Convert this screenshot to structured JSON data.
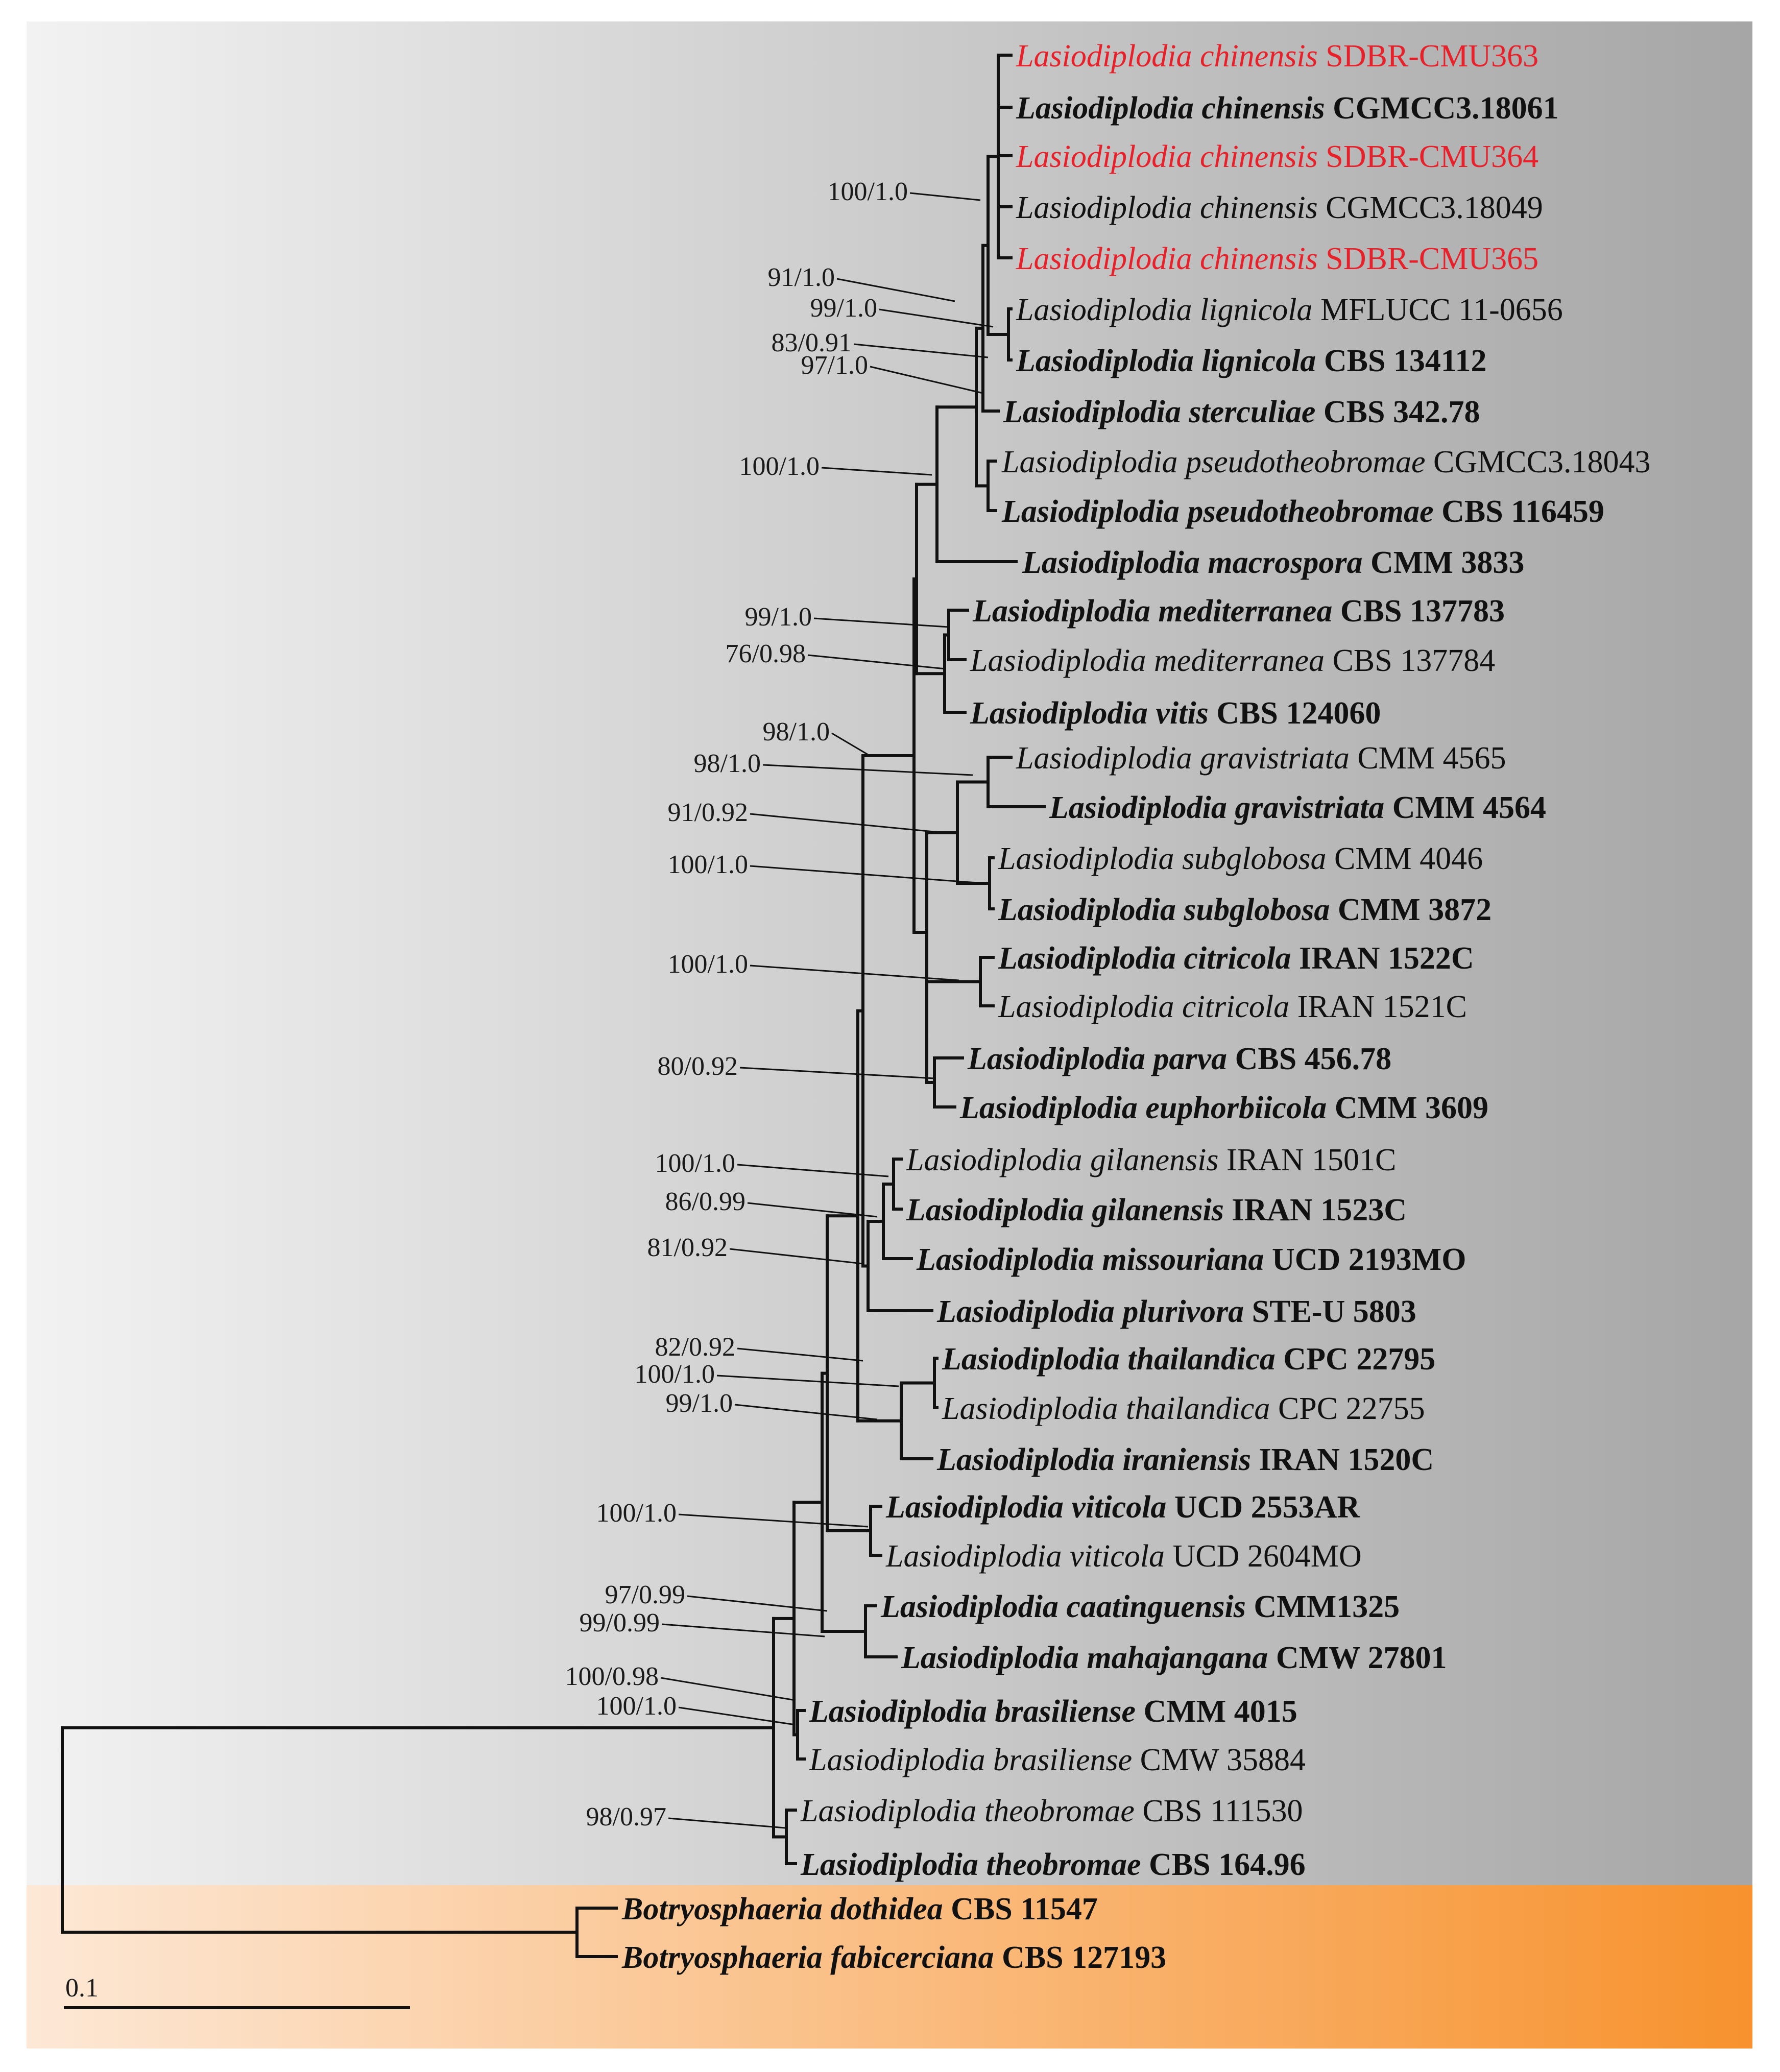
{
  "colors": {
    "ingroup_bg_start": "#f2f2f2",
    "ingroup_bg_end": "#a6a6a6",
    "outgroup_bg_start": "#fde8d6",
    "outgroup_bg_end": "#f7922e",
    "new_isolate_text": "#e8202a",
    "default_text": "#111111"
  },
  "taxa": [
    {
      "genus": "Lasiodiplodia",
      "epithet": "chinensis",
      "strain": "SDBR-CMU363",
      "type_strain": false,
      "new_isolate": true
    },
    {
      "genus": "Lasiodiplodia",
      "epithet": "chinensis",
      "strain": "CGMCC3.18061",
      "type_strain": true,
      "new_isolate": false
    },
    {
      "genus": "Lasiodiplodia",
      "epithet": "chinensis",
      "strain": "SDBR-CMU364",
      "type_strain": false,
      "new_isolate": true
    },
    {
      "genus": "Lasiodiplodia",
      "epithet": "chinensis",
      "strain": "CGMCC3.18049",
      "type_strain": false,
      "new_isolate": false
    },
    {
      "genus": "Lasiodiplodia",
      "epithet": "chinensis",
      "strain": "SDBR-CMU365",
      "type_strain": false,
      "new_isolate": true
    },
    {
      "genus": "Lasiodiplodia",
      "epithet": "lignicola",
      "strain": "MFLUCC 11-0656",
      "type_strain": false,
      "new_isolate": false
    },
    {
      "genus": "Lasiodiplodia",
      "epithet": "lignicola",
      "strain": "CBS 134112",
      "type_strain": true,
      "new_isolate": false
    },
    {
      "genus": "Lasiodiplodia",
      "epithet": "sterculiae",
      "strain": "CBS 342.78",
      "type_strain": true,
      "new_isolate": false
    },
    {
      "genus": "Lasiodiplodia",
      "epithet": "pseudotheobromae",
      "strain": "CGMCC3.18043",
      "type_strain": false,
      "new_isolate": false
    },
    {
      "genus": "Lasiodiplodia",
      "epithet": "pseudotheobromae",
      "strain": "CBS 116459",
      "type_strain": true,
      "new_isolate": false
    },
    {
      "genus": "Lasiodiplodia",
      "epithet": "macrospora",
      "strain": "CMM 3833",
      "type_strain": true,
      "new_isolate": false
    },
    {
      "genus": "Lasiodiplodia",
      "epithet": "mediterranea",
      "strain": "CBS 137783",
      "type_strain": true,
      "new_isolate": false
    },
    {
      "genus": "Lasiodiplodia",
      "epithet": "mediterranea",
      "strain": "CBS 137784",
      "type_strain": false,
      "new_isolate": false
    },
    {
      "genus": "Lasiodiplodia",
      "epithet": "vitis",
      "strain": "CBS 124060",
      "type_strain": true,
      "new_isolate": false
    },
    {
      "genus": "Lasiodiplodia",
      "epithet": "gravistriata",
      "strain": "CMM 4565",
      "type_strain": false,
      "new_isolate": false
    },
    {
      "genus": "Lasiodiplodia",
      "epithet": "gravistriata",
      "strain": "CMM 4564",
      "type_strain": true,
      "new_isolate": false
    },
    {
      "genus": "Lasiodiplodia",
      "epithet": "subglobosa",
      "strain": "CMM 4046",
      "type_strain": false,
      "new_isolate": false
    },
    {
      "genus": "Lasiodiplodia",
      "epithet": "subglobosa",
      "strain": "CMM 3872",
      "type_strain": true,
      "new_isolate": false
    },
    {
      "genus": "Lasiodiplodia",
      "epithet": "citricola",
      "strain": "IRAN 1522C",
      "type_strain": true,
      "new_isolate": false
    },
    {
      "genus": "Lasiodiplodia",
      "epithet": "citricola",
      "strain": "IRAN 1521C",
      "type_strain": false,
      "new_isolate": false
    },
    {
      "genus": "Lasiodiplodia",
      "epithet": "parva",
      "strain": "CBS 456.78",
      "type_strain": true,
      "new_isolate": false
    },
    {
      "genus": "Lasiodiplodia",
      "epithet": "euphorbiicola",
      "strain": "CMM 3609",
      "type_strain": true,
      "new_isolate": false
    },
    {
      "genus": "Lasiodiplodia",
      "epithet": "gilanensis",
      "strain": "IRAN 1501C",
      "type_strain": false,
      "new_isolate": false
    },
    {
      "genus": "Lasiodiplodia",
      "epithet": "gilanensis",
      "strain": "IRAN 1523C",
      "type_strain": true,
      "new_isolate": false
    },
    {
      "genus": "Lasiodiplodia",
      "epithet": "missouriana",
      "strain": "UCD 2193MO",
      "type_strain": true,
      "new_isolate": false
    },
    {
      "genus": "Lasiodiplodia",
      "epithet": "plurivora",
      "strain": "STE-U 5803",
      "type_strain": true,
      "new_isolate": false
    },
    {
      "genus": "Lasiodiplodia",
      "epithet": "thailandica",
      "strain": "CPC 22795",
      "type_strain": true,
      "new_isolate": false
    },
    {
      "genus": "Lasiodiplodia",
      "epithet": "thailandica",
      "strain": "CPC 22755",
      "type_strain": false,
      "new_isolate": false
    },
    {
      "genus": "Lasiodiplodia",
      "epithet": "iraniensis",
      "strain": "IRAN 1520C",
      "type_strain": true,
      "new_isolate": false
    },
    {
      "genus": "Lasiodiplodia",
      "epithet": "viticola",
      "strain": "UCD 2553AR",
      "type_strain": true,
      "new_isolate": false
    },
    {
      "genus": "Lasiodiplodia",
      "epithet": "viticola",
      "strain": "UCD 2604MO",
      "type_strain": false,
      "new_isolate": false
    },
    {
      "genus": "Lasiodiplodia",
      "epithet": "caatinguensis",
      "strain": "CMM1325",
      "type_strain": true,
      "new_isolate": false
    },
    {
      "genus": "Lasiodiplodia",
      "epithet": "mahajangana",
      "strain": "CMW 27801",
      "type_strain": true,
      "new_isolate": false
    },
    {
      "genus": "Lasiodiplodia",
      "epithet": "brasiliense",
      "strain": "CMM 4015",
      "type_strain": true,
      "new_isolate": false
    },
    {
      "genus": "Lasiodiplodia",
      "epithet": "brasiliense",
      "strain": "CMW 35884",
      "type_strain": false,
      "new_isolate": false
    },
    {
      "genus": "Lasiodiplodia",
      "epithet": "theobromae",
      "strain": "CBS 111530",
      "type_strain": false,
      "new_isolate": false
    },
    {
      "genus": "Lasiodiplodia",
      "epithet": "theobromae",
      "strain": "CBS 164.96",
      "type_strain": true,
      "new_isolate": false
    },
    {
      "genus": "Botryosphaeria",
      "epithet": "dothidea",
      "strain": "CBS 11547",
      "type_strain": true,
      "new_isolate": false
    },
    {
      "genus": "Botryosphaeria",
      "epithet": "fabicerciana",
      "strain": "CBS 127193",
      "type_strain": true,
      "new_isolate": false
    }
  ],
  "support_values": [
    {
      "label": "100/1.0",
      "clade": "L. chinensis"
    },
    {
      "label": "91/1.0",
      "clade": "L. chinensis + L. lignicola"
    },
    {
      "label": "99/1.0",
      "clade": "L. lignicola"
    },
    {
      "label": "83/0.91",
      "clade": "L. chinensis + L. lignicola + L. sterculiae"
    },
    {
      "label": "97/1.0",
      "clade": "L. sterculiae + relatives"
    },
    {
      "label": "100/1.0",
      "clade": "L. pseudotheobromae"
    },
    {
      "label": "99/1.0",
      "clade": "L. mediterranea"
    },
    {
      "label": "76/0.98",
      "clade": "L. mediterranea + L. vitis"
    },
    {
      "label": "98/1.0",
      "clade": "large subclade"
    },
    {
      "label": "98/1.0",
      "clade": "L. gravistriata"
    },
    {
      "label": "91/0.92",
      "clade": "L. gravistriata + L. subglobosa"
    },
    {
      "label": "100/1.0",
      "clade": "L. subglobosa"
    },
    {
      "label": "100/1.0",
      "clade": "L. citricola"
    },
    {
      "label": "80/0.92",
      "clade": "L. parva + L. euphorbiicola"
    },
    {
      "label": "100/1.0",
      "clade": "L. gilanensis"
    },
    {
      "label": "86/0.99",
      "clade": "L. gilanensis + L. missouriana"
    },
    {
      "label": "81/0.92",
      "clade": "L. gilanensis + L. missouriana + L. plurivora"
    },
    {
      "label": "82/0.92",
      "clade": "L. thailandica"
    },
    {
      "label": "100/1.0",
      "clade": "L. thailandica + L. iraniensis"
    },
    {
      "label": "99/1.0",
      "clade": "L. thailandica + L. iraniensis group"
    },
    {
      "label": "100/1.0",
      "clade": "L. viticola"
    },
    {
      "label": "97/0.99",
      "clade": "L. caatinguensis + L. mahajangana"
    },
    {
      "label": "99/0.99",
      "clade": "L. caatinguensis group"
    },
    {
      "label": "100/0.98",
      "clade": "ingroup excluding L. theobromae"
    },
    {
      "label": "100/1.0",
      "clade": "L. brasiliense"
    },
    {
      "label": "98/0.97",
      "clade": "L. theobromae"
    }
  ],
  "scale_bar": {
    "label": "0.1",
    "substitutions_per_site": 0.1
  }
}
